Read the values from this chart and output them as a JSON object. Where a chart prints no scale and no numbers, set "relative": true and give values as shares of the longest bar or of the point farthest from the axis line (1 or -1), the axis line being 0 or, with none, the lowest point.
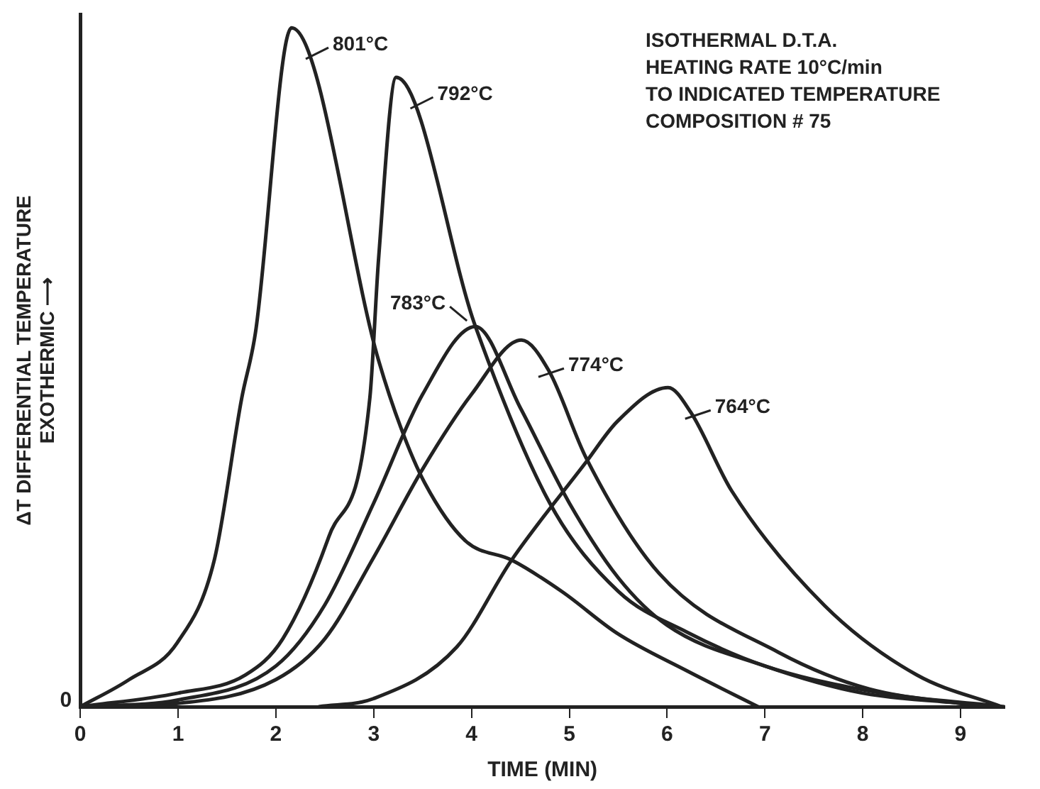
{
  "chart_data": {
    "type": "line",
    "relative": true,
    "xlabel": "TIME (MIN)",
    "ylabel": "ΔT DIFFERENTIAL TEMPERATURE\nEXOTHERMIC ⟶",
    "xlim": [
      0,
      9.45
    ],
    "xticks": [
      0,
      1,
      2,
      3,
      4,
      5,
      6,
      7,
      8,
      9
    ],
    "grid": false,
    "legend": "top",
    "marker": "none",
    "line_style": "solid",
    "annotations": [
      {
        "text": "0",
        "x": 0,
        "y": 0
      },
      "ISOTHERMAL D.T.A.",
      "HEATING RATE 10°C/min",
      "TO INDICATED TEMPERATURE",
      "COMPOSITION # 75"
    ],
    "series": [
      {
        "name": "801°C",
        "color": "#222222",
        "x": [
          0,
          0.5,
          0.99,
          1.37,
          1.65,
          1.79,
          2.16,
          3.05,
          3.28,
          3.52,
          3.94,
          4.41,
          4.93,
          5.49,
          6.2,
          6.93
        ],
        "values": [
          0,
          0.04,
          0.094,
          0.216,
          0.454,
          0.55,
          1.0,
          0.51,
          0.41,
          0.33,
          0.244,
          0.216,
          0.169,
          0.108,
          0.053,
          0
        ]
      },
      {
        "name": "792°C",
        "color": "#222222",
        "x": [
          0,
          1,
          1.69,
          2.07,
          2.54,
          2.96,
          3.05,
          3.23,
          4.04,
          4.8,
          5.5,
          6.2,
          7,
          8,
          9,
          9.4
        ],
        "values": [
          0,
          0.02,
          0.047,
          0.1,
          0.25,
          0.454,
          0.66,
          0.927,
          0.56,
          0.3,
          0.17,
          0.11,
          0.06,
          0.025,
          0.005,
          0
        ]
      },
      {
        "name": "783°C",
        "color": "#222222",
        "x": [
          0,
          1,
          2,
          2.5,
          3,
          3.5,
          4.04,
          4.5,
          5,
          5.5,
          6,
          7,
          8,
          9,
          9.33
        ],
        "values": [
          0,
          0.01,
          0.06,
          0.15,
          0.3,
          0.46,
          0.56,
          0.44,
          0.3,
          0.19,
          0.12,
          0.06,
          0.02,
          0.005,
          0
        ]
      },
      {
        "name": "774°C",
        "color": "#222222",
        "x": [
          0,
          1,
          2,
          2.5,
          3,
          3.5,
          4,
          4.51,
          4.79,
          5.17,
          5.92,
          7.14,
          8.07,
          9.45
        ],
        "values": [
          0,
          0.005,
          0.04,
          0.1,
          0.22,
          0.35,
          0.46,
          0.54,
          0.495,
          0.367,
          0.196,
          0.08,
          0.026,
          0
        ]
      },
      {
        "name": "764°C",
        "color": "#222222",
        "x": [
          2.44,
          3,
          3.85,
          4.41,
          5.17,
          5.49,
          6.01,
          6.24,
          6.66,
          7.61,
          8.55,
          9.42
        ],
        "values": [
          0,
          0.012,
          0.088,
          0.216,
          0.36,
          0.42,
          0.47,
          0.434,
          0.318,
          0.149,
          0.047,
          0
        ]
      }
    ]
  }
}
